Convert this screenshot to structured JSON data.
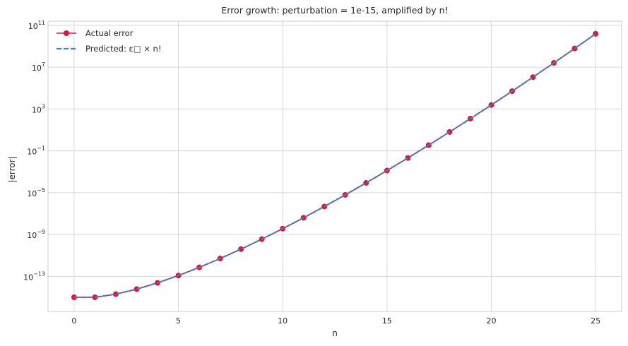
{
  "chart_data": {
    "type": "line",
    "title": "Error growth: perturbation = 1e-15, amplified by n!",
    "xlabel": "n",
    "ylabel": "|error|",
    "xlim": [
      -1.25,
      26.25
    ],
    "ylim_log10": [
      -16.35,
      11.4
    ],
    "y_scale": "log",
    "grid": true,
    "legend_position": "top-left",
    "x_ticks": [
      0,
      5,
      10,
      15,
      20,
      25
    ],
    "x_tick_labels": [
      "0",
      "5",
      "10",
      "15",
      "20",
      "25"
    ],
    "y_ticks_log10": [
      -13,
      -9,
      -5,
      -1,
      3,
      7,
      11
    ],
    "y_tick_labels": [
      {
        "base": "10",
        "exp": "−13"
      },
      {
        "base": "10",
        "exp": "−9"
      },
      {
        "base": "10",
        "exp": "−5"
      },
      {
        "base": "10",
        "exp": "−1"
      },
      {
        "base": "10",
        "exp": "3"
      },
      {
        "base": "10",
        "exp": "7"
      },
      {
        "base": "10",
        "exp": "11"
      }
    ],
    "x": [
      0,
      1,
      2,
      3,
      4,
      5,
      6,
      7,
      8,
      9,
      10,
      11,
      12,
      13,
      14,
      15,
      16,
      17,
      18,
      19,
      20,
      21,
      22,
      23,
      24,
      25
    ],
    "series": [
      {
        "name": "Actual error",
        "style": "solid-with-markers",
        "color": "#d6173f",
        "values": [
          1e-15,
          1e-15,
          2e-15,
          6e-15,
          2.4e-14,
          1.2e-13,
          7.2e-13,
          5.04e-12,
          4.032e-11,
          3.6288e-10,
          3.6288e-09,
          3.99168e-08,
          4.790016e-07,
          6.2270208e-06,
          8.71782912e-05,
          0.001307674368,
          0.020922789888,
          0.355687428096,
          6.402373705728,
          121.645100408832,
          2432.90200817664,
          51090.9421717094,
          1124000.72777761,
          25852016.7388849,
          620448401.733239,
          15511210043.331
        ]
      },
      {
        "name": "Predicted: ε□ × n!",
        "style": "dashed",
        "color": "#4682b4",
        "values": [
          1e-15,
          1e-15,
          2e-15,
          6e-15,
          2.4e-14,
          1.2e-13,
          7.2e-13,
          5.04e-12,
          4.032e-11,
          3.6288e-10,
          3.6288e-09,
          3.99168e-08,
          4.790016e-07,
          6.2270208e-06,
          8.71782912e-05,
          0.001307674368,
          0.020922789888,
          0.355687428096,
          6.402373705728,
          121.645100408832,
          2432.90200817664,
          51090.9421717094,
          1124000.72777761,
          25852016.7388849,
          620448401.733239,
          15511210043.331
        ]
      }
    ]
  }
}
